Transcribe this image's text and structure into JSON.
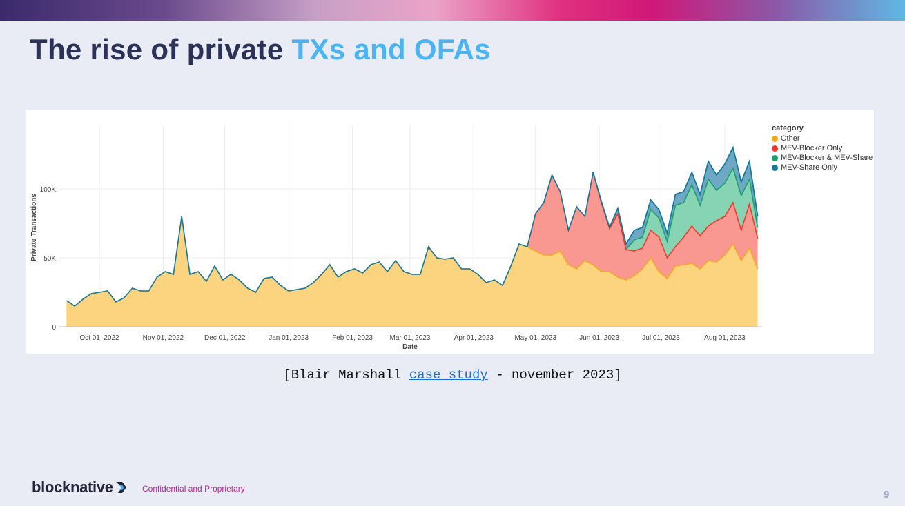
{
  "slide": {
    "title_main": "The rise of private ",
    "title_accent": "TXs and OFAs",
    "caption_pre": "[Blair Marshall ",
    "caption_link": "case study",
    "caption_post": " - november 2023]",
    "logo_text": "blocknative",
    "footer": "Confidential and Proprietary",
    "page_number": "9"
  },
  "chart_data": {
    "type": "area",
    "stacked": true,
    "xlabel": "Date",
    "ylabel": "Private Transactions",
    "ylim": [
      0,
      145000
    ],
    "yticks": [
      {
        "v": 0,
        "label": "0"
      },
      {
        "v": 50000,
        "label": "50K"
      },
      {
        "v": 100000,
        "label": "100K"
      }
    ],
    "xticks": [
      {
        "date": "2022-10-01",
        "label": "Oct 01, 2022"
      },
      {
        "date": "2022-11-01",
        "label": "Nov 01, 2022"
      },
      {
        "date": "2022-12-01",
        "label": "Dec 01, 2022"
      },
      {
        "date": "2023-01-01",
        "label": "Jan 01, 2023"
      },
      {
        "date": "2023-02-01",
        "label": "Feb 01, 2023"
      },
      {
        "date": "2023-03-01",
        "label": "Mar 01, 2023"
      },
      {
        "date": "2023-04-01",
        "label": "Apr 01, 2023"
      },
      {
        "date": "2023-05-01",
        "label": "May 01, 2023"
      },
      {
        "date": "2023-06-01",
        "label": "Jun 01, 2023"
      },
      {
        "date": "2023-07-01",
        "label": "Jul 01, 2023"
      },
      {
        "date": "2023-08-01",
        "label": "Aug 01, 2023"
      }
    ],
    "grid": true,
    "legend_title": "category",
    "legend_position": "right",
    "start_date": "2022-09-15",
    "step_days": 4,
    "series": [
      {
        "name": "Other",
        "color": "#f5a623",
        "fill": "#fcd47f",
        "values": [
          19,
          15,
          20,
          24,
          25,
          26,
          18,
          21,
          28,
          26,
          26,
          36,
          40,
          38,
          80,
          38,
          40,
          33,
          44,
          34,
          38,
          34,
          28,
          25,
          35,
          36,
          30,
          26,
          27,
          28,
          32,
          38,
          45,
          36,
          40,
          42,
          39,
          45,
          47,
          40,
          48,
          40,
          38,
          38,
          58,
          50,
          49,
          50,
          42,
          42,
          38,
          32,
          34,
          30,
          44,
          60,
          58,
          55,
          52,
          52,
          55,
          45,
          42,
          48,
          45,
          40,
          40,
          36,
          34,
          37,
          42,
          50,
          40,
          35,
          44,
          45,
          46,
          42,
          48,
          47,
          52,
          60,
          48,
          57,
          42
        ]
      },
      {
        "name": "MEV-Blocker Only",
        "color": "#f0392b",
        "fill": "#f99890",
        "values": [
          0,
          0,
          0,
          0,
          0,
          0,
          0,
          0,
          0,
          0,
          0,
          0,
          0,
          0,
          0,
          0,
          0,
          0,
          0,
          0,
          0,
          0,
          0,
          0,
          0,
          0,
          0,
          0,
          0,
          0,
          0,
          0,
          0,
          0,
          0,
          0,
          0,
          0,
          0,
          0,
          0,
          0,
          0,
          0,
          0,
          0,
          0,
          0,
          0,
          0,
          0,
          0,
          0,
          0,
          0,
          0,
          0,
          27,
          38,
          58,
          43,
          25,
          45,
          32,
          67,
          50,
          31,
          46,
          22,
          18,
          15,
          20,
          25,
          15,
          14,
          20,
          27,
          24,
          25,
          30,
          28,
          30,
          22,
          32,
          22
        ]
      },
      {
        "name": "MEV-Blocker & MEV-Share",
        "color": "#1aa06a",
        "fill": "#86d4b4",
        "values": [
          0,
          0,
          0,
          0,
          0,
          0,
          0,
          0,
          0,
          0,
          0,
          0,
          0,
          0,
          0,
          0,
          0,
          0,
          0,
          0,
          0,
          0,
          0,
          0,
          0,
          0,
          0,
          0,
          0,
          0,
          0,
          0,
          0,
          0,
          0,
          0,
          0,
          0,
          0,
          0,
          0,
          0,
          0,
          0,
          0,
          0,
          0,
          0,
          0,
          0,
          0,
          0,
          0,
          0,
          0,
          0,
          0,
          0,
          0,
          0,
          0,
          0,
          0,
          0,
          0,
          0,
          0,
          0,
          0,
          8,
          8,
          15,
          14,
          12,
          30,
          25,
          30,
          22,
          34,
          22,
          24,
          25,
          25,
          18,
          8
        ]
      },
      {
        "name": "MEV-Share Only",
        "color": "#15789a",
        "fill": "#6fa8c4",
        "values": [
          0,
          0,
          0,
          0,
          0,
          0,
          0,
          0,
          0,
          0,
          0,
          0,
          0,
          0,
          0,
          0,
          0,
          0,
          0,
          0,
          0,
          0,
          0,
          0,
          0,
          0,
          0,
          0,
          0,
          0,
          0,
          0,
          0,
          0,
          0,
          0,
          0,
          0,
          0,
          0,
          0,
          0,
          0,
          0,
          0,
          0,
          0,
          0,
          0,
          0,
          0,
          0,
          0,
          0,
          0,
          0,
          0,
          0,
          0,
          0,
          0,
          0,
          0,
          0,
          0,
          1,
          1,
          4,
          4,
          7,
          7,
          7,
          6,
          6,
          8,
          8,
          9,
          8,
          13,
          11,
          14,
          15,
          10,
          13,
          8
        ]
      }
    ],
    "value_unit": "thousands"
  }
}
